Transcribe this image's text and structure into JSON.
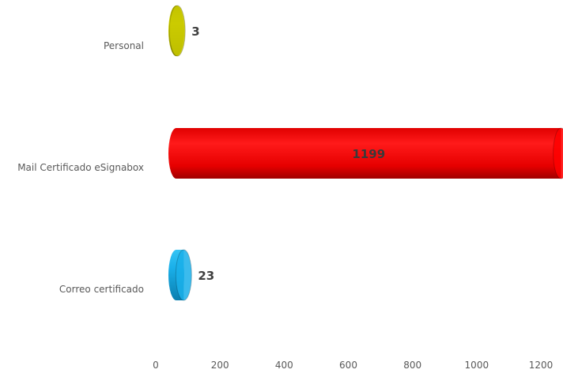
{
  "chart_data": {
    "type": "bar",
    "orientation": "horizontal",
    "style": "3d-cylinder",
    "title": "",
    "xlabel": "",
    "ylabel": "",
    "categories": [
      "Personal",
      "Mail Certificado eSignabox",
      "Correo certificado"
    ],
    "values": [
      3,
      1199,
      23
    ],
    "data_labels": [
      "3",
      "1199",
      "23"
    ],
    "colors": [
      "#c8c800",
      "#ff0000",
      "#1ab0ea"
    ],
    "xlim": [
      0,
      1200
    ],
    "x_ticks": [
      "0",
      "200",
      "400",
      "600",
      "800",
      "1000",
      "1200"
    ],
    "grid": false,
    "legend": "none"
  }
}
